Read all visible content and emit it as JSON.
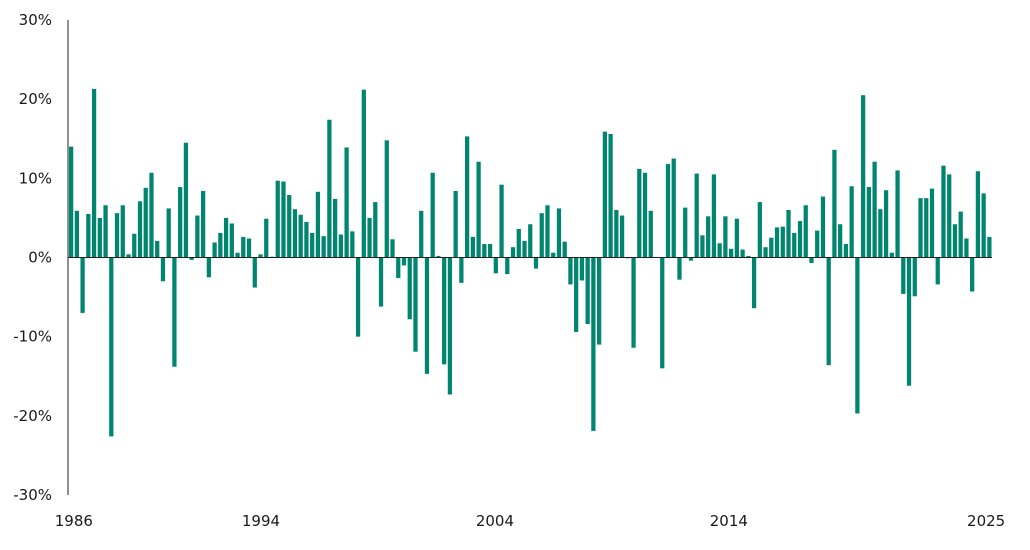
{
  "chart_data": {
    "type": "bar",
    "title": "",
    "xlabel": "",
    "ylabel": "",
    "ylim": [
      -30,
      30
    ],
    "y_ticks": [
      30,
      20,
      10,
      0,
      -10,
      -20,
      -30
    ],
    "y_tick_labels": [
      "30%",
      "20%",
      "10%",
      "0%",
      "-10%",
      "-20%",
      "-30%"
    ],
    "x_range": [
      1986.0,
      2025.5
    ],
    "x_ticks": [
      1986,
      1994,
      2004,
      2014,
      2025
    ],
    "x_tick_labels": [
      "1986",
      "1994",
      "2004",
      "2014",
      "2025"
    ],
    "bar_color": "#00856f",
    "grid": false,
    "legend": "none",
    "period": "quarterly",
    "values": [
      14.0,
      5.9,
      -7.0,
      5.5,
      21.3,
      5.0,
      6.6,
      -22.6,
      5.6,
      6.6,
      0.4,
      3.0,
      7.1,
      8.8,
      10.7,
      2.1,
      -3.0,
      6.2,
      -13.8,
      8.9,
      14.5,
      -0.3,
      5.3,
      8.4,
      -2.5,
      1.9,
      3.1,
      5.0,
      4.3,
      0.6,
      2.6,
      2.4,
      -3.8,
      0.4,
      4.9,
      0.1,
      9.7,
      9.6,
      7.9,
      6.1,
      5.4,
      4.5,
      3.1,
      8.3,
      2.7,
      17.4,
      7.4,
      2.9,
      13.9,
      3.3,
      -10.0,
      21.2,
      5.0,
      7.0,
      -6.2,
      14.8,
      2.3,
      -2.6,
      -1.0,
      -7.8,
      -11.9,
      5.9,
      -14.7,
      10.7,
      0.2,
      -13.5,
      -17.3,
      8.4,
      -3.2,
      15.3,
      2.6,
      12.1,
      1.7,
      1.7,
      -2.0,
      9.2,
      -2.1,
      1.3,
      3.6,
      2.1,
      4.2,
      -1.4,
      5.6,
      6.6,
      0.6,
      6.2,
      2.0,
      -3.4,
      -9.4,
      -2.9,
      -8.4,
      -21.9,
      -11.0,
      15.9,
      15.6,
      6.0,
      5.3,
      -0.1,
      -11.4,
      11.2,
      10.7,
      5.9,
      0.0,
      -14.0,
      11.8,
      12.5,
      -2.8,
      6.3,
      -0.4,
      10.6,
      2.8,
      5.2,
      10.5,
      1.8,
      5.2,
      1.1,
      4.9,
      1.0,
      0.2,
      -6.4,
      7.0,
      1.3,
      2.5,
      3.8,
      3.9,
      6.0,
      3.1,
      4.6,
      6.6,
      -0.7,
      3.4,
      7.7,
      -13.6,
      13.6,
      4.2,
      1.7,
      9.0,
      -19.7,
      20.5,
      8.9,
      12.1,
      6.1,
      8.5,
      0.6,
      11.0,
      -4.6,
      -16.2,
      -4.9,
      7.5,
      7.5,
      8.7,
      -3.4,
      11.6,
      10.5,
      4.2,
      5.8,
      2.4,
      -4.3,
      10.9,
      8.1,
      2.6
    ]
  }
}
